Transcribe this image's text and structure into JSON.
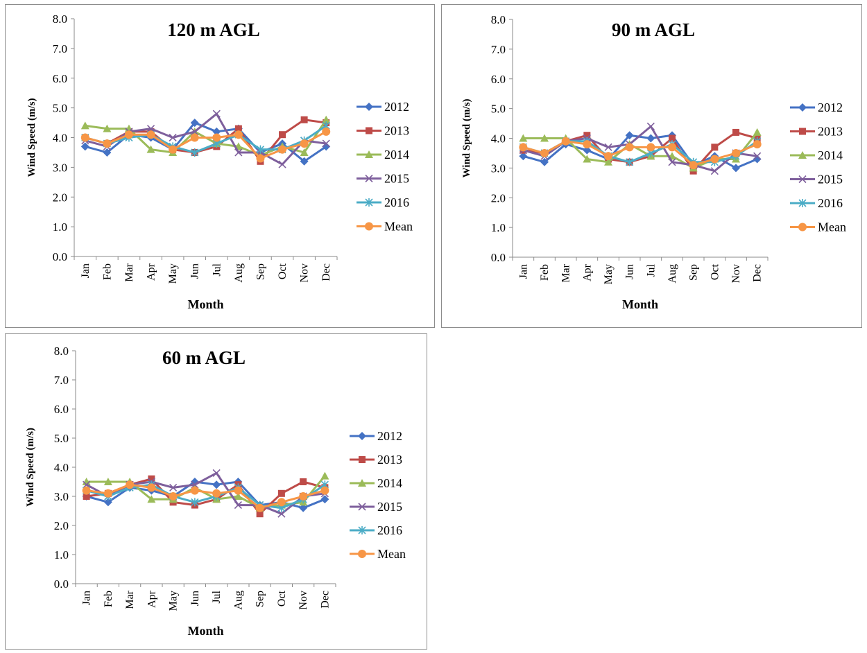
{
  "chart_data": [
    {
      "type": "line",
      "title": "120 m AGL",
      "xlabel": "Month",
      "ylabel": "Wind Speed (m/s)",
      "ylim": [
        0,
        8
      ],
      "yticks": [
        "0.0",
        "1.0",
        "2.0",
        "3.0",
        "4.0",
        "5.0",
        "6.0",
        "7.0",
        "8.0"
      ],
      "grid": false,
      "legend": "right",
      "categories": [
        "Jan",
        "Feb",
        "Mar",
        "Apr",
        "May",
        "Jun",
        "Jul",
        "Aug",
        "Sep",
        "Oct",
        "Nov",
        "Dec"
      ],
      "series": [
        {
          "name": "2012",
          "color": "#4472c4",
          "marker": "diamond",
          "values": [
            3.7,
            3.5,
            4.1,
            4.0,
            3.6,
            4.5,
            4.2,
            4.3,
            3.5,
            3.8,
            3.2,
            3.7
          ]
        },
        {
          "name": "2013",
          "color": "#be4b48",
          "marker": "square",
          "values": [
            4.0,
            3.8,
            4.2,
            4.2,
            3.6,
            3.5,
            3.7,
            4.3,
            3.2,
            4.1,
            4.6,
            4.5
          ]
        },
        {
          "name": "2014",
          "color": "#9bbb59",
          "marker": "triangle",
          "values": [
            4.4,
            4.3,
            4.3,
            3.6,
            3.5,
            4.2,
            3.8,
            3.7,
            3.4,
            3.7,
            3.5,
            4.6
          ]
        },
        {
          "name": "2015",
          "color": "#7e5f9c",
          "marker": "x",
          "values": [
            3.9,
            3.7,
            4.2,
            4.3,
            4.0,
            4.2,
            4.8,
            3.5,
            3.5,
            3.1,
            3.9,
            3.8
          ]
        },
        {
          "name": "2016",
          "color": "#4bacc6",
          "marker": "asterisk",
          "values": [
            4.0,
            3.8,
            4.0,
            4.1,
            3.7,
            3.5,
            3.8,
            4.1,
            3.6,
            3.6,
            3.9,
            4.4
          ]
        },
        {
          "name": "Mean",
          "color": "#f79646",
          "marker": "circle",
          "values": [
            4.0,
            3.8,
            4.1,
            4.1,
            3.6,
            4.0,
            4.0,
            4.1,
            3.3,
            3.6,
            3.8,
            4.2
          ]
        }
      ]
    },
    {
      "type": "line",
      "title": "90 m AGL",
      "xlabel": "Month",
      "ylabel": "Wind Speed (m/s)",
      "ylim": [
        0,
        8
      ],
      "yticks": [
        "0.0",
        "1.0",
        "2.0",
        "3.0",
        "4.0",
        "5.0",
        "6.0",
        "7.0",
        "8.0"
      ],
      "grid": false,
      "legend": "right",
      "categories": [
        "Jan",
        "Feb",
        "Mar",
        "Apr",
        "May",
        "Jun",
        "Jul",
        "Aug",
        "Sep",
        "Oct",
        "Nov",
        "Dec"
      ],
      "series": [
        {
          "name": "2012",
          "color": "#4472c4",
          "marker": "diamond",
          "values": [
            3.4,
            3.2,
            3.8,
            3.6,
            3.3,
            4.1,
            4.0,
            4.1,
            3.1,
            3.4,
            3.0,
            3.3
          ]
        },
        {
          "name": "2013",
          "color": "#be4b48",
          "marker": "square",
          "values": [
            3.6,
            3.5,
            3.9,
            4.1,
            3.3,
            3.2,
            3.4,
            4.0,
            2.9,
            3.7,
            4.2,
            4.0
          ]
        },
        {
          "name": "2014",
          "color": "#9bbb59",
          "marker": "triangle",
          "values": [
            4.0,
            4.0,
            4.0,
            3.3,
            3.2,
            3.8,
            3.4,
            3.4,
            3.0,
            3.3,
            3.3,
            4.2
          ]
        },
        {
          "name": "2015",
          "color": "#7e5f9c",
          "marker": "x",
          "values": [
            3.6,
            3.4,
            3.9,
            4.0,
            3.7,
            3.8,
            4.4,
            3.2,
            3.1,
            2.9,
            3.5,
            3.4
          ]
        },
        {
          "name": "2016",
          "color": "#4bacc6",
          "marker": "asterisk",
          "values": [
            3.7,
            3.5,
            3.9,
            3.9,
            3.4,
            3.2,
            3.5,
            3.8,
            3.2,
            3.2,
            3.4,
            3.9
          ]
        },
        {
          "name": "Mean",
          "color": "#f79646",
          "marker": "circle",
          "values": [
            3.7,
            3.5,
            3.9,
            3.8,
            3.4,
            3.7,
            3.7,
            3.7,
            3.1,
            3.3,
            3.5,
            3.8
          ]
        }
      ]
    },
    {
      "type": "line",
      "title": "60 m AGL",
      "xlabel": "Month",
      "ylabel": "Wind Speed (m/s)",
      "ylim": [
        0,
        8
      ],
      "yticks": [
        "0.0",
        "1.0",
        "2.0",
        "3.0",
        "4.0",
        "5.0",
        "6.0",
        "7.0",
        "8.0"
      ],
      "grid": false,
      "legend": "right",
      "categories": [
        "Jan",
        "Feb",
        "Mar",
        "Apr",
        "May",
        "Jun",
        "Jul",
        "Aug",
        "Sep",
        "Oct",
        "Nov",
        "Dec"
      ],
      "series": [
        {
          "name": "2012",
          "color": "#4472c4",
          "marker": "diamond",
          "values": [
            3.0,
            2.8,
            3.3,
            3.2,
            3.0,
            3.5,
            3.4,
            3.5,
            2.7,
            2.8,
            2.6,
            2.9
          ]
        },
        {
          "name": "2013",
          "color": "#be4b48",
          "marker": "square",
          "values": [
            3.0,
            3.1,
            3.4,
            3.6,
            2.8,
            2.7,
            2.9,
            3.4,
            2.4,
            3.1,
            3.5,
            3.3
          ]
        },
        {
          "name": "2014",
          "color": "#9bbb59",
          "marker": "triangle",
          "values": [
            3.5,
            3.5,
            3.5,
            2.9,
            2.9,
            3.3,
            2.9,
            3.0,
            2.6,
            2.7,
            2.8,
            3.7
          ]
        },
        {
          "name": "2015",
          "color": "#7e5f9c",
          "marker": "x",
          "values": [
            3.4,
            3.0,
            3.4,
            3.5,
            3.3,
            3.4,
            3.8,
            2.7,
            2.7,
            2.4,
            3.0,
            3.1
          ]
        },
        {
          "name": "2016",
          "color": "#4bacc6",
          "marker": "asterisk",
          "values": [
            3.2,
            3.0,
            3.3,
            3.4,
            3.0,
            2.8,
            3.0,
            3.3,
            2.7,
            2.6,
            2.9,
            3.4
          ]
        },
        {
          "name": "Mean",
          "color": "#f79646",
          "marker": "circle",
          "values": [
            3.2,
            3.1,
            3.4,
            3.3,
            3.0,
            3.2,
            3.1,
            3.2,
            2.6,
            2.8,
            3.0,
            3.2
          ]
        }
      ]
    }
  ]
}
